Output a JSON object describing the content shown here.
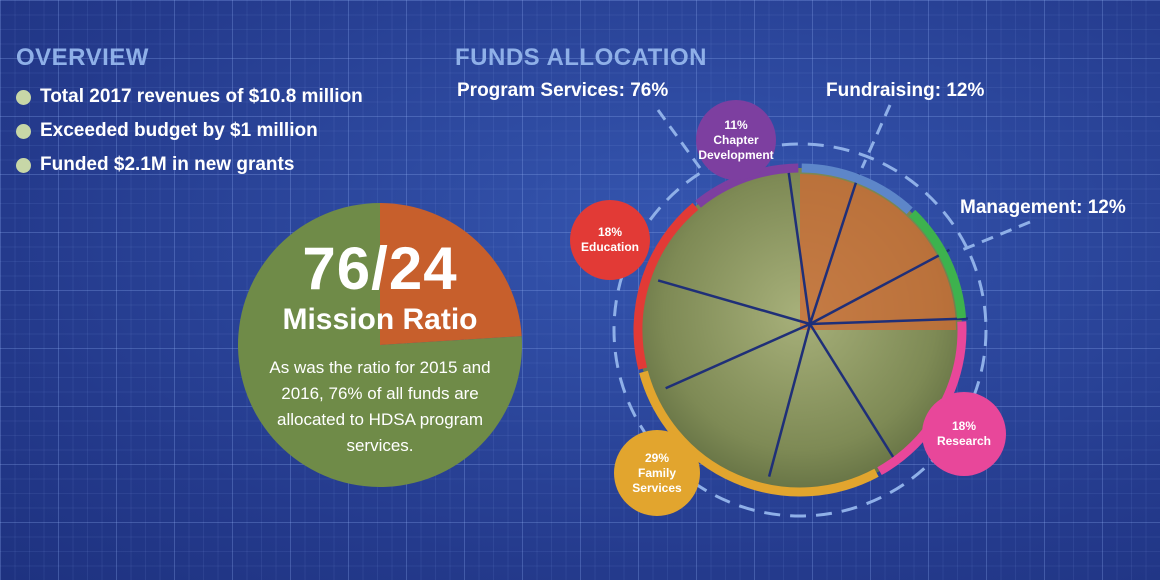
{
  "overview": {
    "heading": "OVERVIEW",
    "bullets": [
      "Total 2017 revenues of $10.8 million",
      "Exceeded budget by $1 million",
      "Funded $2.1M in new grants"
    ]
  },
  "ratio": {
    "number": "76/24",
    "label": "Mission Ratio",
    "description": "As was the ratio for 2015 and 2016, 76% of all funds are allocated to HDSA program services.",
    "program_share": 76,
    "other_share": 24,
    "colors": {
      "program": "#6f8b48",
      "other": "#c75f2c"
    }
  },
  "funds": {
    "heading": "FUNDS ALLOCATION",
    "callouts": {
      "program": "Program Services: 76%",
      "fundraising": "Fundraising: 12%",
      "management": "Management: 12%"
    }
  },
  "chart_data": {
    "type": "pie",
    "title": "FUNDS ALLOCATION",
    "categories": [
      "Program Services",
      "Fundraising",
      "Management"
    ],
    "values": [
      76,
      12,
      12
    ],
    "program_breakdown": [
      {
        "name": "Chapter Development",
        "percent_label": "11%",
        "label_lines": [
          "Chapter",
          "Development"
        ],
        "value": 11,
        "color": "#7d3fa0"
      },
      {
        "name": "Education",
        "percent_label": "18%",
        "label_lines": [
          "Education"
        ],
        "value": 18,
        "color": "#e23a36"
      },
      {
        "name": "Family Services",
        "percent_label": "29%",
        "label_lines": [
          "Family",
          "Services"
        ],
        "value": 29,
        "color": "#e2a52e"
      },
      {
        "name": "Research",
        "percent_label": "18%",
        "label_lines": [
          "Research"
        ],
        "value": 18,
        "color": "#e8479a"
      }
    ],
    "other_colors": {
      "Fundraising": "#5d86c9",
      "Management": "#3db24e"
    }
  }
}
